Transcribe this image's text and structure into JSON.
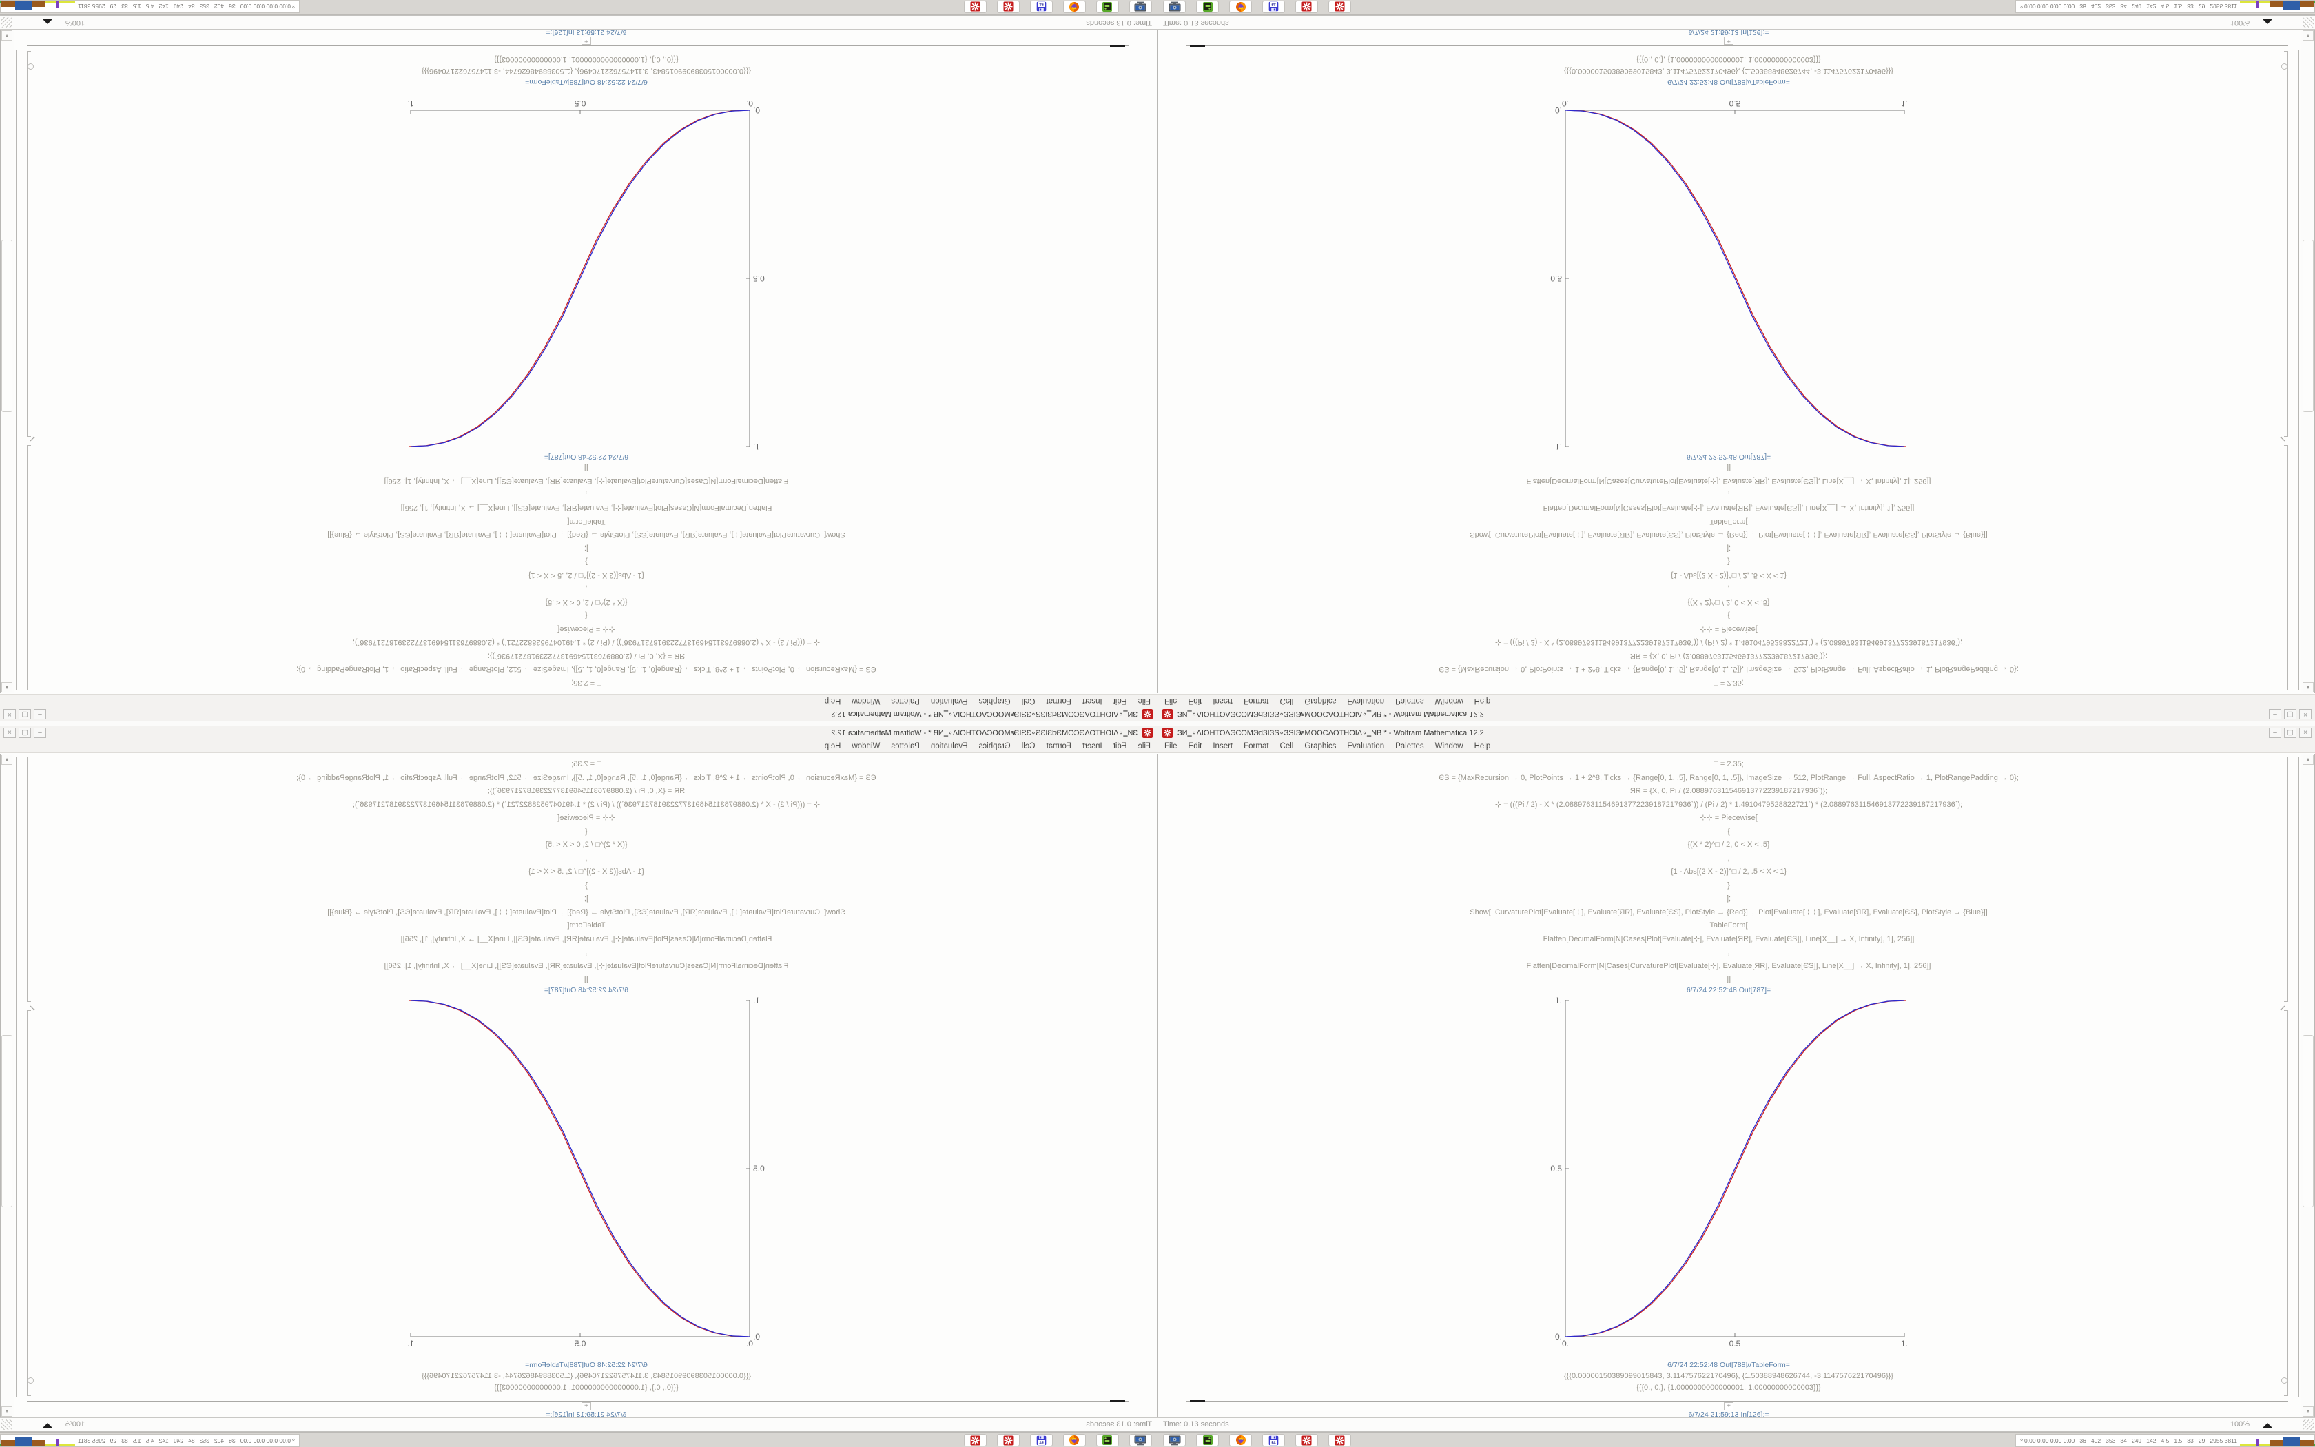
{
  "window": {
    "title": "ЗИ‗∘ΔΙΟΗΤΟΛЭСОМЭdЗΙЗЅ∘ЗЅΙЭεМООСΛОТНОΙΔ∘‗NB * - Wolfram Mathematica 12.2",
    "buttons": {
      "minimize": "–",
      "maximize": "▢",
      "close": "×"
    }
  },
  "menu": {
    "items": [
      "File",
      "Edit",
      "Insert",
      "Format",
      "Cell",
      "Graphics",
      "Evaluation",
      "Palettes",
      "Window",
      "Help"
    ]
  },
  "notebook": {
    "code_lines": [
      "□ = 2.35;",
      "ЄЅ = {MaxRecursion → 0, PlotPoints → 1 + 2^8, Ticks → {Range[0, 1, .5], Range[0, 1, .5]}, ImageSize → 512, PlotRange → Full, AspectRatio → 1, PlotRangePadding → 0};",
      "ЯR = {X, 0, Pi / (2.088976311546913772239187217936`)};",
      "⊹ = (((Pi / 2) - X * (2.088976311546913772239187217936`)) / (Pi / 2) * 1.4910479528822721`) * (2.088976311546913772239187217936`);",
      "⊹⊹ = Piecewise[",
      "{",
      "{(X * 2)^□ / 2, 0 < X < .5}",
      ",",
      "{1 - Abs[(2 X - 2)]^□ / 2, .5 < X < 1}",
      "}",
      "];",
      "Show[  CurvaturePlot[Evaluate[⊹], Evaluate[ЯR], Evaluate[ЄЅ], PlotStyle → {Red}]  ,  Plot[Evaluate[⊹⊹], Evaluate[ЯR], Evaluate[ЄЅ], PlotStyle → {Blue}]]",
      "TableForm[",
      "Flatten[DecimalForm[N[Cases[Plot[Evaluate[⊹], Evaluate[ЯR], Evaluate[ЄЅ]], Line[X__] → X, Infinity], 1], 256]]",
      ",",
      "Flatten[DecimalForm[N[Cases[CurvaturePlot[Evaluate[⊹], Evaluate[ЯR], Evaluate[ЄЅ]], Line[X__] → X, Infinity], 1], 256]]",
      "]]"
    ],
    "out_plot_label": "6/7/24 22:52:48 Out[787]=",
    "out_table_label": "6/7/24 22:52:48 Out[788]//TableForm=",
    "table_rows": [
      "{{{0.00000150389099015843, 3.114757622170496}, {1.50388948626744, -3.114757622170496}}}",
      "{{{0., 0.}, {1.0000000000000001, 1.00000000000003}}}"
    ],
    "next_in_label": "6/7/24 21:59:13 In[126]:=",
    "plus_glyph": "+"
  },
  "status_bar": {
    "time_text": "Time: 0.13 seconds",
    "zoom_level": "100%"
  },
  "taskbar": {
    "launchers": [
      "screenshot-tool",
      "package-manager",
      "firefox",
      "disk-imager",
      "mathematica",
      "mathematica"
    ],
    "disk_label": "64",
    "tray_values": "0.00 0.00 0.00 0.00   36   402   353   34   249   142   4.5   1.5   33   29   2955 3811",
    "tray_chart_segments": [
      {
        "w": 24,
        "h": 2,
        "c": "#dde63c"
      },
      {
        "w": 3,
        "h": 9,
        "c": "#7a3fc0"
      },
      {
        "w": 16,
        "h": 2,
        "c": "#dde63c"
      },
      {
        "w": 20,
        "h": 8,
        "c": "#9a5a1e"
      },
      {
        "w": 24,
        "h": 12,
        "c": "#2f5fa8"
      },
      {
        "w": 20,
        "h": 8,
        "c": "#9a5a1e"
      },
      {
        "w": 6,
        "h": 2,
        "c": "#3fae3f"
      },
      {
        "w": 2,
        "h": 6,
        "c": "#3fae3f"
      },
      {
        "w": 5,
        "h": 2,
        "c": "#3fae3f"
      },
      {
        "w": 2,
        "h": 5,
        "c": "#3fae3f"
      },
      {
        "w": 8,
        "h": 2,
        "c": "#3fae3f"
      }
    ]
  },
  "chart_data": {
    "type": "line",
    "title": "",
    "xlabel": "",
    "ylabel": "",
    "xlim": [
      0,
      1
    ],
    "ylim": [
      0,
      1
    ],
    "xticks": [
      "0.",
      "0.5",
      "1."
    ],
    "yticks": [
      "0.",
      "0.5",
      "1."
    ],
    "grid": false,
    "legend_position": "none",
    "x": [
      0,
      0.05,
      0.1,
      0.15,
      0.2,
      0.25,
      0.3,
      0.35,
      0.4,
      0.45,
      0.5,
      0.55,
      0.6,
      0.65,
      0.7,
      0.75,
      0.8,
      0.85,
      0.9,
      0.95,
      1
    ],
    "series": [
      {
        "name": "CurvaturePlot (Red)",
        "color": "#cc2222",
        "y": [
          0,
          0.0022,
          0.0114,
          0.0295,
          0.058,
          0.098,
          0.1505,
          0.216,
          0.296,
          0.39,
          0.5,
          0.61,
          0.704,
          0.784,
          0.8495,
          0.902,
          0.942,
          0.9705,
          0.9886,
          0.9978,
          1
        ]
      },
      {
        "name": "Plot (Blue)",
        "color": "#2a2ad0",
        "y": [
          0,
          0.0022,
          0.0114,
          0.0295,
          0.058,
          0.098,
          0.1505,
          0.216,
          0.296,
          0.39,
          0.5,
          0.61,
          0.704,
          0.784,
          0.8495,
          0.902,
          0.942,
          0.9705,
          0.9886,
          0.9978,
          1
        ]
      }
    ],
    "note": "Smoothstep-like piecewise curve (2x)^2.35/2 mirrored; red and blue curves nearly coincident"
  },
  "mirrors": {
    "layout": "2x2 kaleidoscope: bottom-right original, others mirrored copies"
  }
}
